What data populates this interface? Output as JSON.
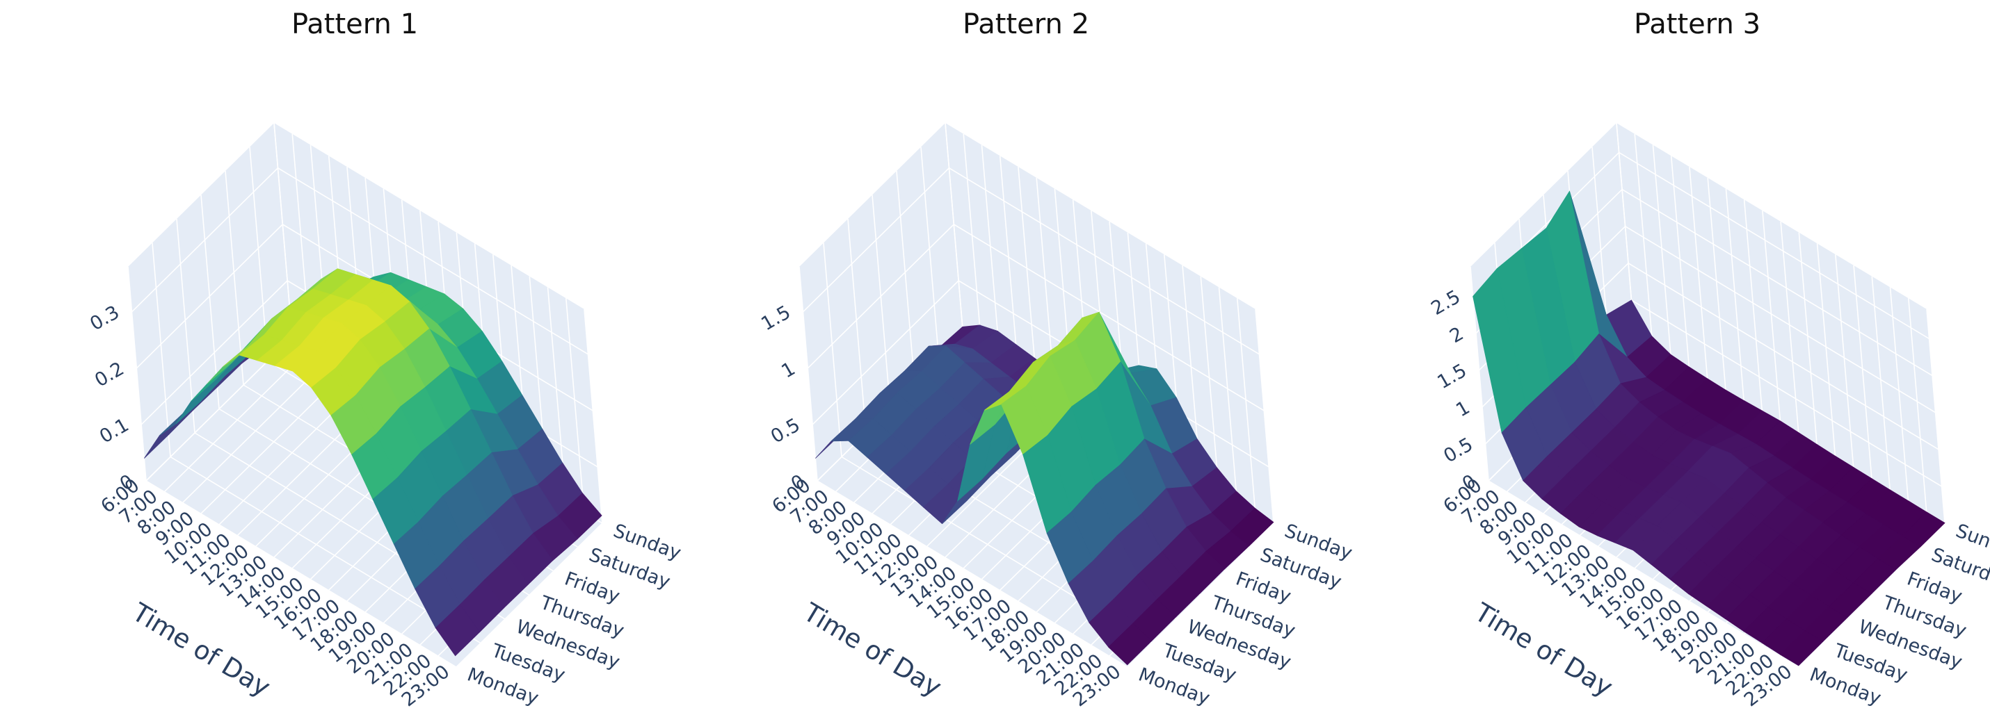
{
  "chart_data": [
    {
      "type": "surface",
      "title": "Pattern 1",
      "xlabel": "Time of Day",
      "ylabel": "",
      "zlabel": "",
      "x_categories": [
        "6:00",
        "7:00",
        "8:00",
        "9:00",
        "10:00",
        "11:00",
        "12:00",
        "13:00",
        "14:00",
        "15:00",
        "16:00",
        "17:00",
        "18:00",
        "19:00",
        "20:00",
        "21:00",
        "22:00",
        "23:00"
      ],
      "y_categories": [
        "Monday",
        "Tuesday",
        "Wednesday",
        "Thursday",
        "Friday",
        "Saturday",
        "Sunday"
      ],
      "z_ticks": [
        0,
        0.1,
        0.2,
        0.3
      ],
      "zlim": [
        0,
        0.38
      ],
      "colorscale": "Viridis",
      "grid": true,
      "day_values": [
        0.04,
        0.1,
        0.14,
        0.2,
        0.25,
        0.3,
        0.34,
        0.35,
        0.36,
        0.37,
        0.36,
        0.33,
        0.28,
        0.22,
        0.16,
        0.1,
        0.05,
        0.02
      ],
      "weekday_factor": [
        1.0,
        0.98,
        1.0,
        0.97,
        0.95,
        0.72,
        0.68
      ]
    },
    {
      "type": "surface",
      "title": "Pattern 2",
      "xlabel": "Time of Day",
      "ylabel": "",
      "zlabel": "",
      "x_categories": [
        "6:00",
        "7:00",
        "8:00",
        "9:00",
        "10:00",
        "11:00",
        "12:00",
        "13:00",
        "14:00",
        "15:00",
        "16:00",
        "17:00",
        "18:00",
        "19:00",
        "20:00",
        "21:00",
        "22:00",
        "23:00"
      ],
      "y_categories": [
        "Monday",
        "Tuesday",
        "Wednesday",
        "Thursday",
        "Friday",
        "Saturday",
        "Sunday"
      ],
      "z_ticks": [
        0,
        0.5,
        1,
        1.5
      ],
      "zlim": [
        0,
        1.9
      ],
      "colorscale": "Viridis",
      "grid": true,
      "day_values": [
        0.2,
        0.45,
        0.55,
        0.5,
        0.45,
        0.4,
        0.35,
        0.3,
        0.6,
        1.2,
        1.6,
        1.75,
        1.4,
        0.8,
        0.45,
        0.2,
        0.08,
        0.02
      ],
      "weekday_factor": [
        1.0,
        0.97,
        1.0,
        0.96,
        0.98,
        0.55,
        0.45
      ]
    },
    {
      "type": "surface",
      "title": "Pattern 3",
      "xlabel": "Time of Day",
      "ylabel": "",
      "zlabel": "",
      "x_categories": [
        "6:00",
        "7:00",
        "8:00",
        "9:00",
        "10:00",
        "11:00",
        "12:00",
        "13:00",
        "14:00",
        "15:00",
        "16:00",
        "17:00",
        "18:00",
        "19:00",
        "20:00",
        "21:00",
        "22:00",
        "23:00"
      ],
      "y_categories": [
        "Monday",
        "Tuesday",
        "Wednesday",
        "Thursday",
        "Friday",
        "Saturday",
        "Sunday"
      ],
      "z_ticks": [
        0,
        0.5,
        1,
        1.5,
        2,
        2.5
      ],
      "zlim": [
        0,
        2.9
      ],
      "colorscale": "Viridis",
      "grid": true,
      "day_values": [
        2.5,
        0.8,
        0.3,
        0.2,
        0.15,
        0.12,
        0.15,
        0.2,
        0.25,
        0.2,
        0.15,
        0.1,
        0.08,
        0.06,
        0.04,
        0.03,
        0.02,
        0.02
      ],
      "weekday_factor": [
        1.0,
        1.02,
        1.0,
        0.98,
        1.05,
        0.25,
        0.2
      ]
    }
  ]
}
